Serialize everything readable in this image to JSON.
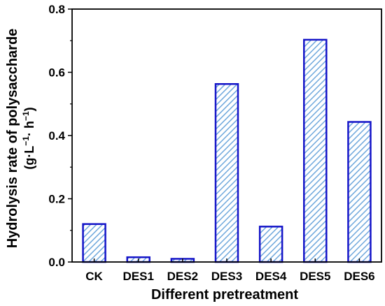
{
  "chart_data": {
    "type": "bar",
    "title": "",
    "xlabel": "Different pretreatment",
    "ylabel": "Hydrolysis rate of polysaccharde",
    "ylabel_unit": {
      "prefix": "(g·L",
      "exp1": "−1",
      "middle": "· h",
      "exp2": "−1",
      "suffix": ")"
    },
    "categories": [
      "CK",
      "DES1",
      "DES2",
      "DES3",
      "DES4",
      "DES5",
      "DES6"
    ],
    "values": [
      0.12,
      0.015,
      0.01,
      0.563,
      0.112,
      0.703,
      0.443
    ],
    "ylim": [
      0,
      0.8
    ],
    "yticks": [
      "0.0",
      "0.2",
      "0.4",
      "0.6",
      "0.8"
    ],
    "ytick_values": [
      0,
      0.2,
      0.4,
      0.6,
      0.8
    ],
    "grid": false,
    "bar_style": {
      "edge_color": "#1414c8",
      "hatch_color": "#6fa8dc",
      "fill_color": "#ffffff",
      "pattern": "diagonal-hatch"
    }
  }
}
